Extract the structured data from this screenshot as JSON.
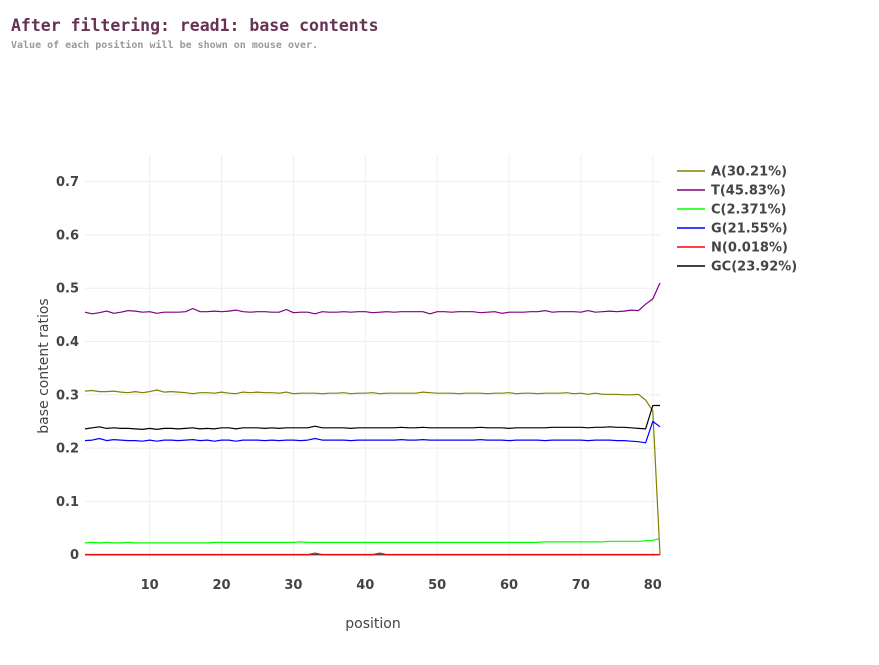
{
  "page": {
    "title": "After filtering: read1: base contents",
    "subtitle": "Value of each position will be shown on mouse over."
  },
  "chart_data": {
    "type": "line",
    "xlabel": "position",
    "ylabel": "base content ratios",
    "xlim": [
      1,
      81
    ],
    "ylim": [
      -0.01,
      0.75
    ],
    "x_ticks": [
      10,
      20,
      30,
      40,
      50,
      60,
      70,
      80
    ],
    "y_ticks": [
      0,
      0.1,
      0.2,
      0.3,
      0.4,
      0.5,
      0.6,
      0.7
    ],
    "y_tick_labels": [
      "0",
      "0.1",
      "0.2",
      "0.3",
      "0.4",
      "0.5",
      "0.6",
      "0.7"
    ],
    "grid": true,
    "legend_position": "top-right",
    "x": [
      1,
      2,
      3,
      4,
      5,
      6,
      7,
      8,
      9,
      10,
      11,
      12,
      13,
      14,
      15,
      16,
      17,
      18,
      19,
      20,
      21,
      22,
      23,
      24,
      25,
      26,
      27,
      28,
      29,
      30,
      31,
      32,
      33,
      34,
      35,
      36,
      37,
      38,
      39,
      40,
      41,
      42,
      43,
      44,
      45,
      46,
      47,
      48,
      49,
      50,
      51,
      52,
      53,
      54,
      55,
      56,
      57,
      58,
      59,
      60,
      61,
      62,
      63,
      64,
      65,
      66,
      67,
      68,
      69,
      70,
      71,
      72,
      73,
      74,
      75,
      76,
      77,
      78,
      79,
      80,
      81
    ],
    "series": [
      {
        "name": "A(30.21%)",
        "color": "#808000",
        "values": [
          0.307,
          0.308,
          0.306,
          0.306,
          0.307,
          0.305,
          0.304,
          0.306,
          0.304,
          0.306,
          0.309,
          0.305,
          0.306,
          0.305,
          0.304,
          0.302,
          0.304,
          0.304,
          0.303,
          0.305,
          0.303,
          0.302,
          0.305,
          0.304,
          0.305,
          0.304,
          0.304,
          0.303,
          0.305,
          0.302,
          0.303,
          0.303,
          0.303,
          0.302,
          0.303,
          0.303,
          0.304,
          0.302,
          0.303,
          0.303,
          0.304,
          0.302,
          0.303,
          0.303,
          0.303,
          0.303,
          0.303,
          0.305,
          0.304,
          0.303,
          0.303,
          0.303,
          0.302,
          0.303,
          0.303,
          0.303,
          0.302,
          0.303,
          0.303,
          0.304,
          0.302,
          0.303,
          0.303,
          0.302,
          0.303,
          0.303,
          0.303,
          0.304,
          0.302,
          0.303,
          0.301,
          0.303,
          0.301,
          0.301,
          0.301,
          0.3,
          0.3,
          0.301,
          0.29,
          0.27,
          0.0
        ]
      },
      {
        "name": "T(45.83%)",
        "color": "#800080",
        "values": [
          0.455,
          0.452,
          0.454,
          0.457,
          0.453,
          0.455,
          0.458,
          0.457,
          0.455,
          0.456,
          0.453,
          0.455,
          0.455,
          0.455,
          0.456,
          0.462,
          0.456,
          0.456,
          0.457,
          0.456,
          0.457,
          0.459,
          0.456,
          0.455,
          0.456,
          0.456,
          0.455,
          0.455,
          0.46,
          0.454,
          0.455,
          0.455,
          0.452,
          0.456,
          0.455,
          0.455,
          0.456,
          0.455,
          0.456,
          0.456,
          0.454,
          0.455,
          0.456,
          0.455,
          0.456,
          0.456,
          0.456,
          0.456,
          0.452,
          0.456,
          0.456,
          0.455,
          0.456,
          0.456,
          0.456,
          0.454,
          0.455,
          0.456,
          0.453,
          0.455,
          0.455,
          0.455,
          0.456,
          0.456,
          0.458,
          0.455,
          0.456,
          0.456,
          0.456,
          0.455,
          0.458,
          0.455,
          0.456,
          0.457,
          0.456,
          0.457,
          0.459,
          0.458,
          0.47,
          0.48,
          0.51
        ]
      },
      {
        "name": "C(2.371%)",
        "color": "#00ff00",
        "values": [
          0.022,
          0.023,
          0.022,
          0.023,
          0.022,
          0.022,
          0.023,
          0.022,
          0.022,
          0.022,
          0.022,
          0.022,
          0.022,
          0.022,
          0.022,
          0.022,
          0.022,
          0.022,
          0.023,
          0.023,
          0.023,
          0.023,
          0.023,
          0.023,
          0.023,
          0.023,
          0.023,
          0.023,
          0.023,
          0.023,
          0.024,
          0.023,
          0.023,
          0.023,
          0.023,
          0.023,
          0.023,
          0.023,
          0.023,
          0.023,
          0.023,
          0.023,
          0.023,
          0.023,
          0.023,
          0.023,
          0.023,
          0.023,
          0.023,
          0.023,
          0.023,
          0.023,
          0.023,
          0.023,
          0.023,
          0.023,
          0.023,
          0.023,
          0.023,
          0.023,
          0.023,
          0.023,
          0.023,
          0.023,
          0.024,
          0.024,
          0.024,
          0.024,
          0.024,
          0.024,
          0.024,
          0.024,
          0.024,
          0.025,
          0.025,
          0.025,
          0.025,
          0.025,
          0.026,
          0.027,
          0.03
        ]
      },
      {
        "name": "G(21.55%)",
        "color": "#0000ff",
        "values": [
          0.214,
          0.215,
          0.218,
          0.214,
          0.216,
          0.215,
          0.214,
          0.214,
          0.213,
          0.215,
          0.213,
          0.215,
          0.215,
          0.214,
          0.215,
          0.216,
          0.214,
          0.215,
          0.213,
          0.215,
          0.215,
          0.213,
          0.215,
          0.215,
          0.215,
          0.214,
          0.215,
          0.214,
          0.215,
          0.215,
          0.214,
          0.215,
          0.218,
          0.215,
          0.215,
          0.215,
          0.215,
          0.214,
          0.215,
          0.215,
          0.215,
          0.215,
          0.215,
          0.215,
          0.216,
          0.215,
          0.215,
          0.216,
          0.215,
          0.215,
          0.215,
          0.215,
          0.215,
          0.215,
          0.215,
          0.216,
          0.215,
          0.215,
          0.215,
          0.214,
          0.215,
          0.215,
          0.215,
          0.215,
          0.214,
          0.215,
          0.215,
          0.215,
          0.215,
          0.215,
          0.214,
          0.215,
          0.215,
          0.215,
          0.214,
          0.214,
          0.213,
          0.212,
          0.21,
          0.25,
          0.24
        ]
      },
      {
        "name": "N(0.018%)",
        "color": "#ff0000",
        "values": [
          0,
          0,
          0,
          0,
          0,
          0,
          0,
          0,
          0,
          0,
          0,
          0,
          0,
          0,
          0,
          0,
          0,
          0,
          0,
          0,
          0,
          0,
          0,
          0,
          0,
          0,
          0,
          0,
          0,
          0,
          0,
          0,
          0.003,
          0,
          0,
          0,
          0,
          0,
          0,
          0,
          0,
          0.003,
          0,
          0,
          0,
          0,
          0,
          0,
          0,
          0,
          0,
          0,
          0,
          0,
          0,
          0,
          0,
          0,
          0,
          0,
          0,
          0,
          0,
          0,
          0,
          0,
          0,
          0,
          0,
          0,
          0,
          0,
          0,
          0,
          0,
          0,
          0,
          0,
          0,
          0,
          0
        ]
      },
      {
        "name": "GC(23.92%)",
        "color": "#000000",
        "values": [
          0.236,
          0.238,
          0.24,
          0.237,
          0.238,
          0.237,
          0.237,
          0.236,
          0.235,
          0.237,
          0.235,
          0.237,
          0.237,
          0.236,
          0.237,
          0.238,
          0.236,
          0.237,
          0.236,
          0.238,
          0.238,
          0.236,
          0.238,
          0.238,
          0.238,
          0.237,
          0.238,
          0.237,
          0.238,
          0.238,
          0.238,
          0.238,
          0.241,
          0.238,
          0.238,
          0.238,
          0.238,
          0.237,
          0.238,
          0.238,
          0.238,
          0.238,
          0.238,
          0.238,
          0.239,
          0.238,
          0.238,
          0.239,
          0.238,
          0.238,
          0.238,
          0.238,
          0.238,
          0.238,
          0.238,
          0.239,
          0.238,
          0.238,
          0.238,
          0.237,
          0.238,
          0.238,
          0.238,
          0.238,
          0.238,
          0.239,
          0.239,
          0.239,
          0.239,
          0.239,
          0.238,
          0.239,
          0.239,
          0.24,
          0.239,
          0.239,
          0.238,
          0.237,
          0.236,
          0.28,
          0.28
        ]
      }
    ]
  }
}
